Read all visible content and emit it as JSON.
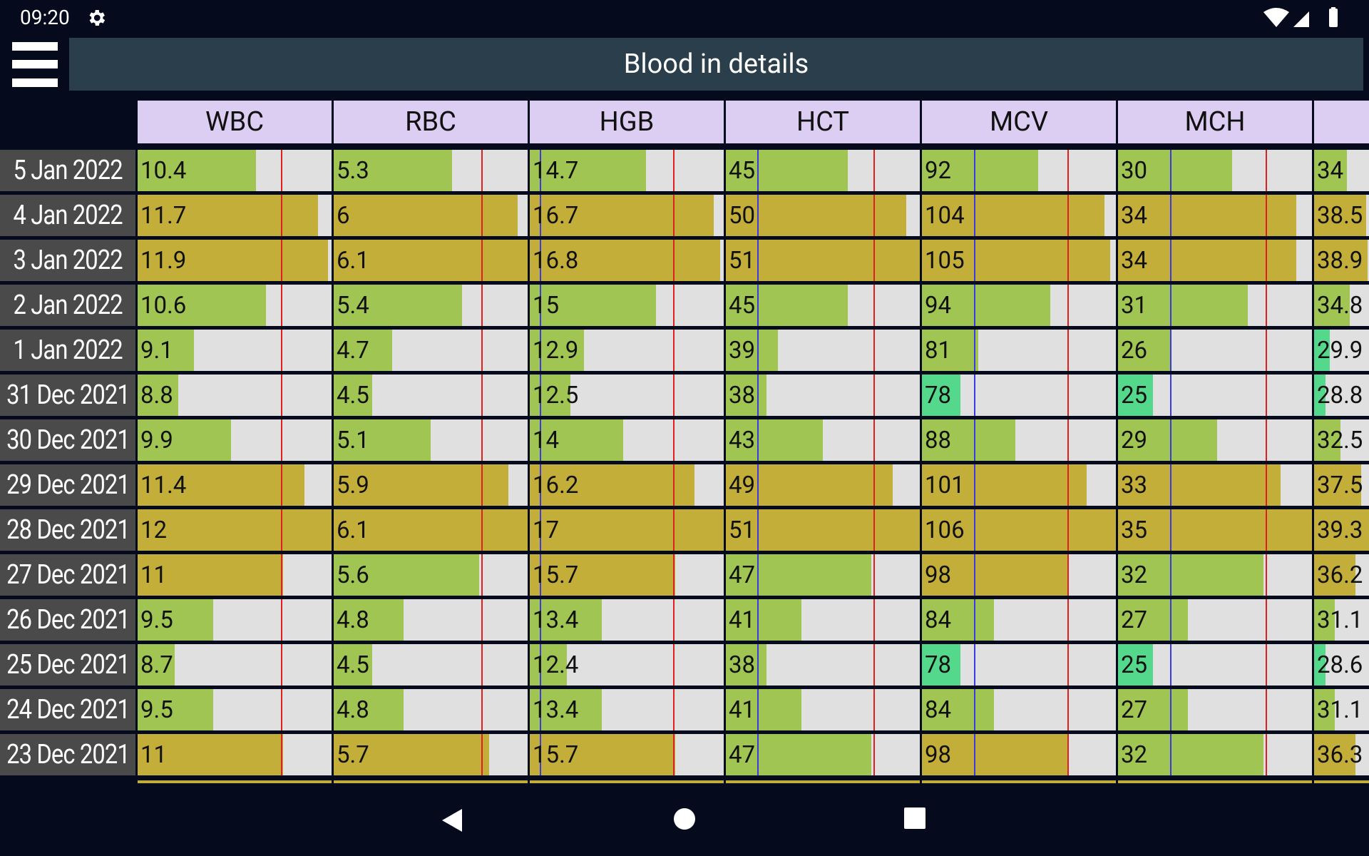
{
  "status_bar": {
    "time": "09:20"
  },
  "app_bar": {
    "title": "Blood in details"
  },
  "columns": [
    {
      "key": "wbc",
      "label": "WBC"
    },
    {
      "key": "rbc",
      "label": "RBC"
    },
    {
      "key": "hgb",
      "label": "HGB"
    },
    {
      "key": "hct",
      "label": "HCT"
    },
    {
      "key": "mcv",
      "label": "MCV"
    },
    {
      "key": "mch",
      "label": "MCH"
    },
    {
      "key": "mchc",
      "label": ""
    }
  ],
  "colors": {
    "normal": "#a0c552",
    "high": "#c3ae3a",
    "low": "#54d98c",
    "upper_limit_line": "#e02020",
    "lower_limit_line": "#3a3ae0"
  },
  "rows": [
    {
      "date": "5 Jan 2022",
      "values": [
        "10.4",
        "5.3",
        "14.7",
        "45",
        "92",
        "30",
        "34"
      ],
      "fill": [
        0.61,
        0.61,
        0.6,
        0.63,
        0.6,
        0.59,
        0.6
      ],
      "status": [
        "ok",
        "ok",
        "ok",
        "ok",
        "ok",
        "ok",
        "ok"
      ]
    },
    {
      "date": "4 Jan 2022",
      "values": [
        "11.7",
        "6",
        "16.7",
        "50",
        "104",
        "34",
        "38.5"
      ],
      "fill": [
        0.93,
        0.95,
        0.95,
        0.93,
        0.94,
        0.92,
        0.95
      ],
      "status": [
        "high",
        "high",
        "high",
        "high",
        "high",
        "high",
        "high"
      ]
    },
    {
      "date": "3 Jan 2022",
      "values": [
        "11.9",
        "6.1",
        "16.8",
        "51",
        "105",
        "34",
        "38.9"
      ],
      "fill": [
        0.98,
        1.0,
        0.98,
        1.0,
        0.97,
        0.92,
        0.97
      ],
      "status": [
        "high",
        "high",
        "high",
        "high",
        "high",
        "high",
        "high"
      ]
    },
    {
      "date": "2 Jan 2022",
      "values": [
        "10.6",
        "5.4",
        "15",
        "45",
        "94",
        "31",
        "34.8"
      ],
      "fill": [
        0.66,
        0.66,
        0.65,
        0.63,
        0.66,
        0.67,
        0.65
      ],
      "status": [
        "ok",
        "ok",
        "ok",
        "ok",
        "ok",
        "ok",
        "ok"
      ]
    },
    {
      "date": "1 Jan 2022",
      "values": [
        "9.1",
        "4.7",
        "12.9",
        "39",
        "81",
        "26",
        "29.9"
      ],
      "fill": [
        0.29,
        0.3,
        0.28,
        0.27,
        0.29,
        0.27,
        0.28
      ],
      "status": [
        "ok",
        "ok",
        "ok",
        "ok",
        "ok",
        "ok",
        "low"
      ]
    },
    {
      "date": "31 Dec 2021",
      "values": [
        "8.8",
        "4.5",
        "12.5",
        "38",
        "78",
        "25",
        "28.8"
      ],
      "fill": [
        0.21,
        0.2,
        0.21,
        0.21,
        0.2,
        0.18,
        0.21
      ],
      "status": [
        "ok",
        "ok",
        "ok",
        "ok",
        "low",
        "low",
        "low"
      ]
    },
    {
      "date": "30 Dec 2021",
      "values": [
        "9.9",
        "5.1",
        "14",
        "43",
        "88",
        "29",
        "32.5"
      ],
      "fill": [
        0.48,
        0.5,
        0.48,
        0.5,
        0.48,
        0.51,
        0.48
      ],
      "status": [
        "ok",
        "ok",
        "ok",
        "ok",
        "ok",
        "ok",
        "ok"
      ]
    },
    {
      "date": "29 Dec 2021",
      "values": [
        "11.4",
        "5.9",
        "16.2",
        "49",
        "101",
        "33",
        "37.5"
      ],
      "fill": [
        0.86,
        0.9,
        0.85,
        0.86,
        0.85,
        0.84,
        0.86
      ],
      "status": [
        "high",
        "high",
        "high",
        "high",
        "high",
        "high",
        "high"
      ]
    },
    {
      "date": "28 Dec 2021",
      "values": [
        "12",
        "6.1",
        "17",
        "51",
        "106",
        "35",
        "39.3"
      ],
      "fill": [
        1.0,
        1.0,
        1.0,
        1.0,
        1.0,
        1.0,
        1.0
      ],
      "status": [
        "high",
        "high",
        "high",
        "high",
        "high",
        "high",
        "high"
      ]
    },
    {
      "date": "27 Dec 2021",
      "values": [
        "11",
        "5.6",
        "15.7",
        "47",
        "98",
        "32",
        "36.2"
      ],
      "fill": [
        0.75,
        0.75,
        0.75,
        0.75,
        0.75,
        0.75,
        0.75
      ],
      "status": [
        "high",
        "ok",
        "high",
        "ok",
        "high",
        "ok",
        "high"
      ]
    },
    {
      "date": "26 Dec 2021",
      "values": [
        "9.5",
        "4.8",
        "13.4",
        "41",
        "84",
        "27",
        "31.1"
      ],
      "fill": [
        0.39,
        0.36,
        0.37,
        0.39,
        0.37,
        0.36,
        0.38
      ],
      "status": [
        "ok",
        "ok",
        "ok",
        "ok",
        "ok",
        "ok",
        "ok"
      ]
    },
    {
      "date": "25 Dec 2021",
      "values": [
        "8.7",
        "4.5",
        "12.4",
        "38",
        "78",
        "25",
        "28.6"
      ],
      "fill": [
        0.19,
        0.2,
        0.19,
        0.21,
        0.2,
        0.18,
        0.21
      ],
      "status": [
        "ok",
        "ok",
        "ok",
        "ok",
        "low",
        "low",
        "low"
      ]
    },
    {
      "date": "24 Dec 2021",
      "values": [
        "9.5",
        "4.8",
        "13.4",
        "41",
        "84",
        "27",
        "31.1"
      ],
      "fill": [
        0.39,
        0.36,
        0.37,
        0.39,
        0.37,
        0.36,
        0.38
      ],
      "status": [
        "ok",
        "ok",
        "ok",
        "ok",
        "ok",
        "ok",
        "ok"
      ]
    },
    {
      "date": "23 Dec 2021",
      "values": [
        "11",
        "5.7",
        "15.7",
        "47",
        "98",
        "32",
        "36.3"
      ],
      "fill": [
        0.75,
        0.8,
        0.75,
        0.75,
        0.75,
        0.75,
        0.75
      ],
      "status": [
        "high",
        "high",
        "high",
        "ok",
        "high",
        "ok",
        "high"
      ]
    }
  ],
  "reference_lines": {
    "upper": [
      0.74,
      0.76,
      0.74,
      0.76,
      0.75,
      0.76,
      null
    ],
    "lower": [
      null,
      null,
      0.05,
      0.16,
      0.27,
      0.27,
      null
    ]
  }
}
